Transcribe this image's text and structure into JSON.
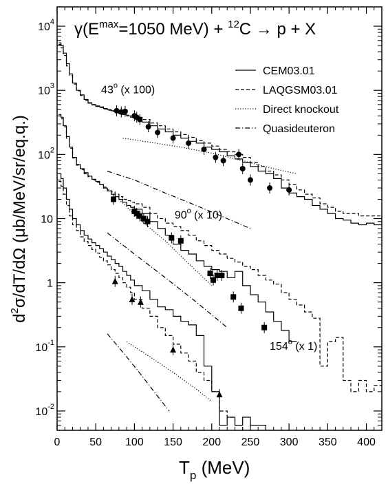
{
  "chart_data": {
    "type": "line",
    "title": "γ(E^max=1050 MeV) + ^12C → p + X",
    "title_parts": {
      "gamma": "γ(E",
      "emax": "max",
      "mid": "=1050 MeV) + ",
      "a": "12",
      "rest": "C → p + X"
    },
    "xlabel": "T_p (MeV)",
    "xlabel_parts": {
      "T": "T",
      "sub": "p",
      "rest": " (MeV)"
    },
    "ylabel": "d²σ/dT/dΩ (μb/MeV/sr/eq.q.)",
    "ylabel_parts": {
      "d": "d",
      "sup": "2",
      "rest": "σ/dT/dΩ (μb/MeV/sr/eq.q.)"
    },
    "x_ticks": [
      "0",
      "50",
      "100",
      "150",
      "200",
      "250",
      "300",
      "350",
      "400"
    ],
    "y_ticks": [
      {
        "base": "10",
        "exp": "-2",
        "value": 0.01
      },
      {
        "base": "10",
        "exp": "-1",
        "value": 0.1
      },
      {
        "base": "1",
        "exp": "",
        "value": 1
      },
      {
        "base": "10",
        "exp": "",
        "value": 10
      },
      {
        "base": "10",
        "exp": "2",
        "value": 100
      },
      {
        "base": "10",
        "exp": "3",
        "value": 1000
      },
      {
        "base": "10",
        "exp": "4",
        "value": 10000
      }
    ],
    "xlim": [
      0,
      420
    ],
    "ylim": [
      0.005,
      20000
    ],
    "yscale": "log",
    "grid": false,
    "legend_position": "top-right",
    "legend": [
      {
        "label": "CEM03.01",
        "dash": "solid"
      },
      {
        "label": "LAQGSM03.01",
        "dash": "dashed"
      },
      {
        "label": "Direct knockout",
        "dash": "dotted"
      },
      {
        "label": "Quasideuteron",
        "dash": "dashdot"
      }
    ],
    "annotations": [
      {
        "label_main": "43",
        "label_sup": "o",
        "label_rest": " (x 100)",
        "x": 57,
        "y": 900
      },
      {
        "label_main": "90",
        "label_sup": "o",
        "label_rest": " (x 10)",
        "x": 152,
        "y": 10
      },
      {
        "label_main": "154",
        "label_sup": "o",
        "label_rest": " (x 1)",
        "x": 275,
        "y": 0.09
      }
    ],
    "series": [
      {
        "group": "43",
        "model": "CEM03.01",
        "dash": "solid",
        "step": true,
        "x": [
          2,
          5,
          8,
          12,
          16,
          20,
          25,
          30,
          35,
          40,
          45,
          50,
          55,
          60,
          65,
          70,
          75,
          80,
          85,
          90,
          95,
          100,
          110,
          120,
          130,
          140,
          150,
          160,
          170,
          180,
          190,
          200,
          210,
          220,
          230,
          240,
          250,
          260,
          270,
          280,
          290,
          300,
          310,
          320,
          330,
          340,
          350,
          360,
          370,
          380,
          390,
          400,
          410,
          420
        ],
        "y": [
          5500,
          5000,
          3800,
          2600,
          1800,
          1300,
          1000,
          850,
          720,
          640,
          600,
          570,
          550,
          520,
          500,
          480,
          460,
          440,
          420,
          400,
          380,
          360,
          320,
          280,
          250,
          225,
          200,
          180,
          160,
          150,
          130,
          120,
          110,
          95,
          85,
          75,
          65,
          55,
          50,
          42,
          30,
          25,
          22,
          20,
          16,
          14,
          12,
          10,
          9.5,
          8.5,
          8,
          8.5,
          8,
          9
        ]
      },
      {
        "group": "43",
        "model": "LAQGSM03.01",
        "dash": "dashed",
        "step": true,
        "x": [
          2,
          5,
          8,
          12,
          16,
          20,
          25,
          30,
          35,
          40,
          45,
          50,
          55,
          60,
          65,
          70,
          75,
          80,
          85,
          90,
          95,
          100,
          110,
          120,
          130,
          140,
          150,
          160,
          170,
          180,
          190,
          200,
          210,
          220,
          230,
          240,
          250,
          260,
          270,
          280,
          290,
          300,
          310,
          320,
          330,
          340,
          350,
          360,
          370,
          380,
          390,
          400,
          410,
          420
        ],
        "y": [
          5200,
          4600,
          3500,
          2400,
          1700,
          1250,
          980,
          830,
          700,
          630,
          590,
          560,
          540,
          510,
          490,
          470,
          450,
          430,
          420,
          410,
          400,
          380,
          350,
          310,
          280,
          250,
          225,
          205,
          185,
          165,
          150,
          135,
          120,
          110,
          100,
          90,
          75,
          65,
          55,
          48,
          40,
          34,
          28,
          24,
          21,
          17,
          15,
          13,
          12,
          12,
          11,
          11,
          11,
          10
        ]
      },
      {
        "group": "43",
        "model": "Direct knockout",
        "dash": "dotted",
        "step": false,
        "x": [
          85,
          120,
          160,
          200,
          240,
          280,
          310
        ],
        "y": [
          180,
          155,
          130,
          105,
          80,
          60,
          50
        ]
      },
      {
        "group": "43",
        "model": "Quasideuteron",
        "dash": "dashdot",
        "step": false,
        "x": [
          65,
          100,
          140,
          180,
          220,
          250
        ],
        "y": [
          55,
          40,
          25,
          16,
          10,
          7
        ]
      },
      {
        "group": "90",
        "model": "CEM03.01",
        "dash": "solid",
        "step": true,
        "x": [
          2,
          5,
          8,
          12,
          16,
          20,
          25,
          30,
          35,
          40,
          45,
          50,
          55,
          60,
          65,
          70,
          75,
          80,
          85,
          90,
          95,
          100,
          110,
          120,
          130,
          140,
          150,
          160,
          170,
          180,
          190,
          200,
          210,
          220,
          230,
          240,
          250,
          260,
          270,
          280,
          290,
          300
        ],
        "y": [
          420,
          380,
          280,
          190,
          130,
          90,
          70,
          60,
          52,
          46,
          41,
          38,
          34,
          30,
          27,
          24,
          22,
          20,
          18,
          16,
          15,
          14,
          12,
          9,
          7,
          5.5,
          4,
          3.2,
          2.8,
          2.2,
          1.8,
          1.6,
          1.5,
          1.2,
          1.5,
          0.9,
          0.65,
          0.5,
          0.35,
          0.25,
          0.18,
          0.12
        ]
      },
      {
        "group": "90",
        "model": "LAQGSM03.01",
        "dash": "dashed",
        "step": true,
        "x": [
          2,
          5,
          8,
          12,
          16,
          20,
          25,
          30,
          35,
          40,
          45,
          50,
          55,
          60,
          65,
          70,
          75,
          80,
          85,
          90,
          95,
          100,
          110,
          120,
          130,
          140,
          150,
          160,
          170,
          180,
          190,
          200,
          210,
          220,
          230,
          240,
          250,
          260,
          270,
          280,
          290,
          300,
          310,
          320,
          330,
          340,
          350,
          360,
          370,
          380,
          390,
          400,
          410,
          420
        ],
        "y": [
          400,
          360,
          270,
          180,
          125,
          88,
          68,
          58,
          50,
          45,
          40,
          37,
          34,
          31,
          28,
          26,
          24,
          22,
          20,
          19,
          18,
          17,
          15,
          12,
          10,
          8.5,
          7.5,
          6.5,
          5.5,
          4.5,
          3.8,
          3.2,
          2.8,
          2.4,
          2.1,
          1.8,
          1.6,
          1.3,
          1.1,
          0.95,
          0.7,
          0.55,
          0.45,
          0.35,
          0.28,
          0.05,
          0.12,
          0.14,
          0.03,
          0.02,
          0.03,
          0.02,
          0.025,
          0.02
        ]
      },
      {
        "group": "90",
        "model": "Direct knockout",
        "dash": "dotted",
        "step": false,
        "x": [
          80,
          110,
          140,
          170,
          200
        ],
        "y": [
          20,
          9,
          4.5,
          2,
          0.9
        ]
      },
      {
        "group": "90",
        "model": "Quasideuteron",
        "dash": "dashdot",
        "step": false,
        "x": [
          65,
          100,
          140,
          180,
          220
        ],
        "y": [
          6,
          2.8,
          1.2,
          0.5,
          0.2
        ]
      },
      {
        "group": "154",
        "model": "CEM03.01",
        "dash": "solid",
        "step": true,
        "x": [
          2,
          5,
          8,
          12,
          16,
          20,
          25,
          30,
          35,
          40,
          45,
          50,
          55,
          60,
          65,
          70,
          75,
          80,
          85,
          90,
          95,
          100,
          110,
          120,
          130,
          140,
          150,
          160,
          170,
          180,
          190,
          200,
          210,
          220,
          230,
          240,
          250,
          260,
          270,
          280,
          290,
          300,
          310,
          320,
          330,
          340,
          350,
          360,
          370,
          380,
          390,
          400,
          410,
          420
        ],
        "y": [
          50,
          42,
          30,
          20,
          14,
          10,
          8,
          6.5,
          5.5,
          4.8,
          4.2,
          3.8,
          3.4,
          3,
          2.6,
          2.3,
          2,
          1.8,
          1.5,
          1.3,
          1.1,
          0.9,
          0.75,
          0.55,
          0.42,
          0.38,
          0.3,
          0.25,
          0.22,
          0.15,
          0.05,
          0.02,
          0.006,
          0.008,
          0.006,
          0.008,
          0.006,
          0.006,
          0.005,
          0.005,
          0.005,
          0.005,
          0.005,
          0.005,
          0.005,
          0.005,
          0.005,
          0.005,
          0.005,
          0.005,
          0.005,
          0.005,
          0.005,
          0.005
        ]
      },
      {
        "group": "154",
        "model": "LAQGSM03.01",
        "dash": "dashed",
        "step": true,
        "x": [
          2,
          5,
          8,
          12,
          16,
          20,
          25,
          30,
          35,
          40,
          45,
          50,
          55,
          60,
          65,
          70,
          75,
          80,
          85,
          90,
          95,
          100,
          110,
          120,
          130,
          140,
          150,
          160,
          170,
          180,
          190,
          200,
          210,
          220,
          230,
          240
        ],
        "y": [
          38,
          32,
          24,
          16,
          11,
          8,
          6.5,
          5.2,
          4.4,
          3.8,
          3.3,
          2.9,
          2.5,
          2.2,
          1.9,
          1.6,
          1.4,
          1.2,
          1,
          0.85,
          0.7,
          0.55,
          0.4,
          0.3,
          0.2,
          0.15,
          0.11,
          0.08,
          0.06,
          0.04,
          0.03,
          0.02,
          0.01,
          0.008,
          0.006,
          0.005
        ]
      },
      {
        "group": "154",
        "model": "Direct knockout",
        "dash": "dotted",
        "step": false,
        "x": [
          90,
          120,
          150,
          180,
          200
        ],
        "y": [
          0.12,
          0.07,
          0.04,
          0.022,
          0.014
        ]
      },
      {
        "group": "154",
        "model": "Quasideuteron",
        "dash": "dashdot",
        "step": false,
        "x": [
          65,
          90,
          110,
          130,
          145
        ],
        "y": [
          0.16,
          0.07,
          0.035,
          0.017,
          0.01
        ]
      }
    ],
    "data_points": [
      {
        "group": "43",
        "marker": "circle",
        "x": [
          77,
          83,
          88,
          100,
          103,
          107,
          118,
          130,
          150,
          170,
          190,
          205,
          215,
          235,
          240,
          250,
          275,
          300
        ],
        "y": [
          480,
          460,
          470,
          400,
          380,
          350,
          270,
          220,
          180,
          150,
          120,
          90,
          80,
          100,
          60,
          40,
          30,
          28
        ]
      },
      {
        "group": "90",
        "marker": "square",
        "x": [
          73,
          100,
          103,
          107,
          112,
          117,
          148,
          160,
          198,
          202,
          207,
          213,
          228,
          238,
          268
        ],
        "y": [
          20,
          13,
          12,
          11,
          10,
          9,
          5,
          4.5,
          1.4,
          1.1,
          1.3,
          1.3,
          0.6,
          0.4,
          0.2
        ]
      },
      {
        "group": "154",
        "marker": "triangle",
        "x": [
          75,
          97,
          108,
          150,
          210
        ],
        "y": [
          1.05,
          0.55,
          0.5,
          0.09,
          0.018
        ]
      }
    ]
  }
}
